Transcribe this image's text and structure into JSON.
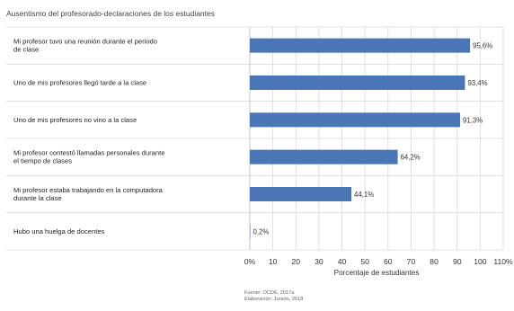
{
  "chart_data": {
    "type": "bar",
    "orientation": "horizontal",
    "title": "Ausentismo del profesorado-declaraciones de los estudiantes",
    "categories": [
      [
        "Mi profesor tuvo una reunión durante el periodo",
        "de clase"
      ],
      [
        "Uno de mis profesores llegó tarde a la clase"
      ],
      [
        "Uno de mis profesores no vino a la clase"
      ],
      [
        "Mi profesor contestó llamadas personales durante",
        "el tiempo de clases"
      ],
      [
        "Mi profesor estaba trabajando en la computadora",
        "durante la clase"
      ],
      [
        "Hubo una huelga de docentes"
      ]
    ],
    "values": [
      95.6,
      93.4,
      91.3,
      64.2,
      44.1,
      0.2
    ],
    "value_labels": [
      "95,6%",
      "93,4%",
      "91,3%",
      "64,2%",
      "44,1%",
      "0,2%"
    ],
    "xlabel": "Porcentaje de estudiantes",
    "xlim": [
      0,
      110
    ],
    "xticks": [
      "0%",
      "10",
      "20",
      "30",
      "40",
      "50",
      "60",
      "70",
      "80",
      "90",
      "100",
      "110%"
    ],
    "grid": "vertical",
    "bar_color": "#4a76b8"
  },
  "source_lines": [
    "Fuente: OCDE, 2017a",
    "Elaboración: Jurado, 2018"
  ]
}
